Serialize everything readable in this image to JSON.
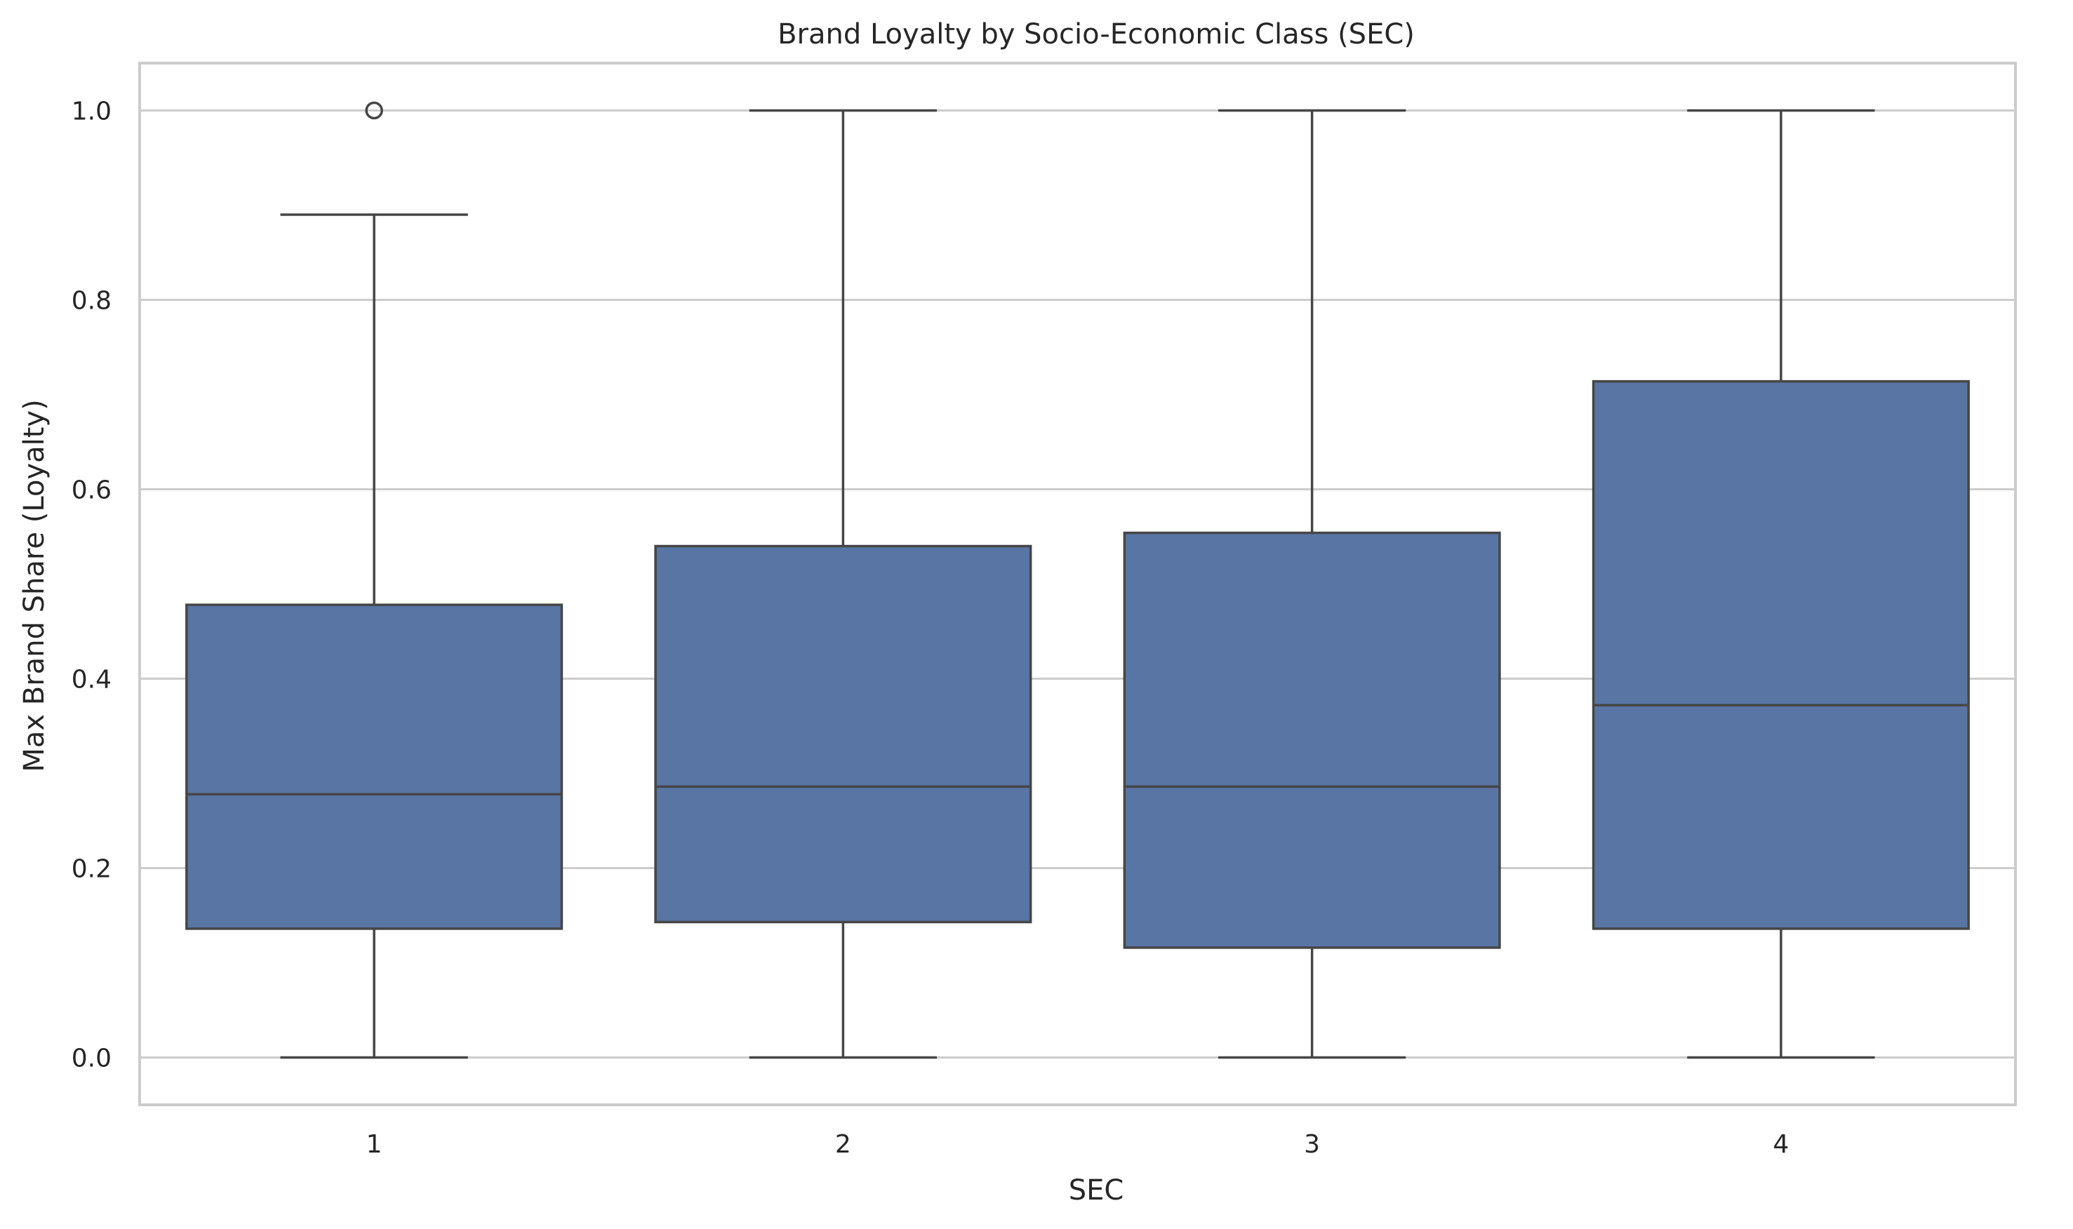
{
  "chart_data": {
    "type": "box",
    "title": "Brand Loyalty by Socio-Economic Class (SEC)",
    "xlabel": "SEC",
    "ylabel": "Max Brand Share (Loyalty)",
    "categories": [
      "1",
      "2",
      "3",
      "4"
    ],
    "ylim": [
      -0.05,
      1.05
    ],
    "yticks": [
      0.0,
      0.2,
      0.4,
      0.6,
      0.8,
      1.0
    ],
    "ytick_labels": [
      "0.0",
      "0.2",
      "0.4",
      "0.6",
      "0.8",
      "1.0"
    ],
    "grid": true,
    "box_color": "#5875a4",
    "line_color": "#464646",
    "boxes": [
      {
        "category": "1",
        "whisker_low": 0.0,
        "q1": 0.136,
        "median": 0.278,
        "q3": 0.478,
        "whisker_high": 0.89,
        "outliers": [
          1.0
        ]
      },
      {
        "category": "2",
        "whisker_low": 0.0,
        "q1": 0.143,
        "median": 0.286,
        "q3": 0.54,
        "whisker_high": 1.0,
        "outliers": []
      },
      {
        "category": "3",
        "whisker_low": 0.0,
        "q1": 0.116,
        "median": 0.286,
        "q3": 0.554,
        "whisker_high": 1.0,
        "outliers": []
      },
      {
        "category": "4",
        "whisker_low": 0.0,
        "q1": 0.136,
        "median": 0.372,
        "q3": 0.714,
        "whisker_high": 1.0,
        "outliers": []
      }
    ]
  }
}
